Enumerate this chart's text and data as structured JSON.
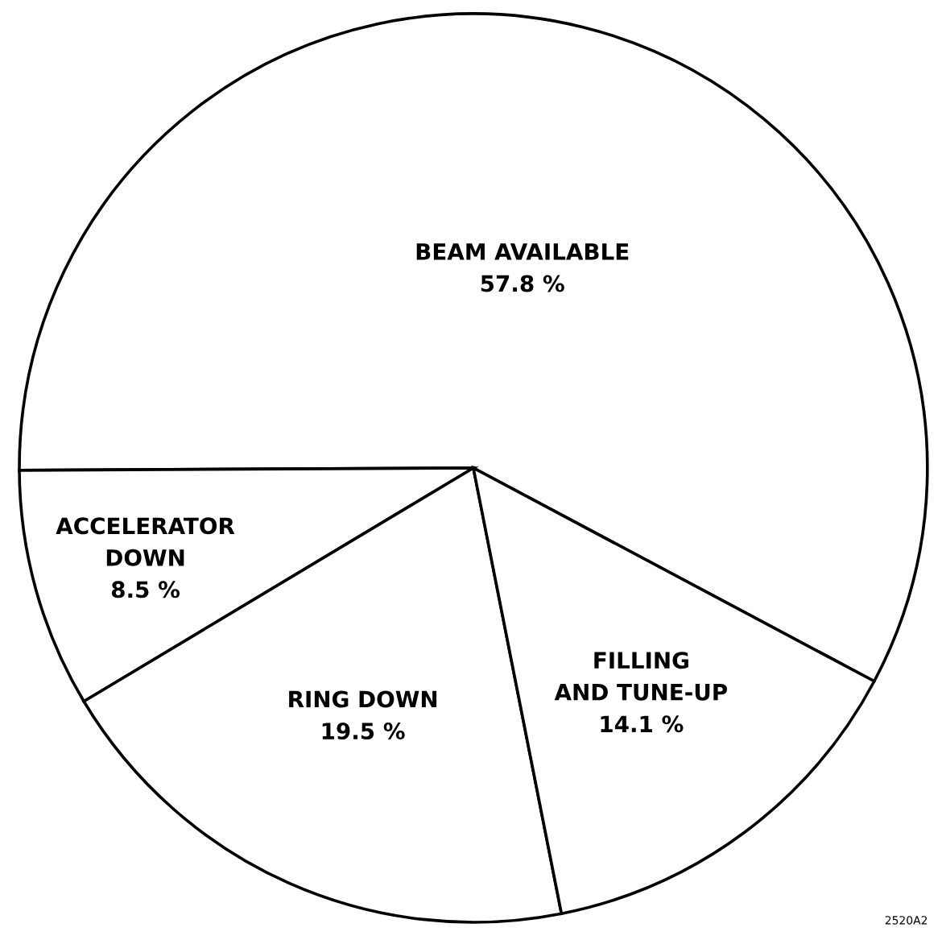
{
  "chart_data": {
    "type": "pie",
    "categories": [
      "BEAM AVAILABLE",
      "ACCELERATOR\nDOWN",
      "RING DOWN",
      "FILLING\nAND TUNE-UP"
    ],
    "values": [
      57.8,
      8.5,
      19.5,
      14.1
    ],
    "value_labels": [
      "57.8 %",
      "8.5 %",
      "19.5 %",
      "14.1 %"
    ],
    "colors": [
      "#ffffff",
      "#ffffff",
      "#ffffff",
      "#ffffff"
    ],
    "annotations": [
      "2520A2"
    ],
    "legend": false
  }
}
